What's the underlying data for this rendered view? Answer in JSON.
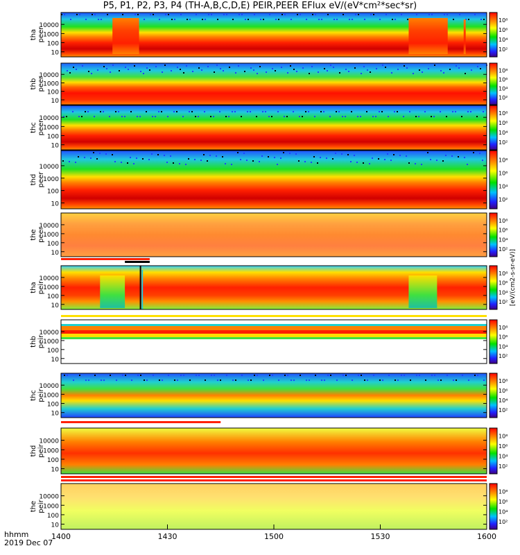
{
  "title": "P5, P1, P2, P3, P4 (TH-A,B,C,D,E) PEIR,PEER EFlux eV/(eV*cm²*sec*sr)",
  "footer": {
    "line1": "hhmm",
    "line2": "2019 Dec 07"
  },
  "colorbar_label": "[eV/(cm2-s-sr-eV)]",
  "colorbar_ticks": [
    "10²",
    "10⁴",
    "10⁶",
    "10⁸"
  ],
  "chart_data": {
    "type": "heatmap",
    "x_tick_labels": [
      "1400",
      "1430",
      "1500",
      "1530",
      "1600"
    ],
    "x_range": [
      "14:00",
      "16:00"
    ],
    "y_scale": "log",
    "y_tick_labels": [
      "10",
      "100",
      "1000",
      "10000"
    ],
    "colorscale": "rainbow (blue-green-yellow-red)",
    "panels": [
      {
        "probe": "tha",
        "species": "peer",
        "label": "tha\npeer",
        "colorbar": true
      },
      {
        "probe": "thb",
        "species": "peer",
        "label": "thb\npeer",
        "colorbar": true
      },
      {
        "probe": "thc",
        "species": "peer",
        "label": "thc\npeer",
        "colorbar": true
      },
      {
        "probe": "thd",
        "species": "peer",
        "label": "thd\npeer",
        "colorbar": true
      },
      {
        "probe": "the",
        "species": "peer",
        "label": "the\npeer",
        "colorbar": true
      },
      {
        "probe": "tha",
        "species": "peir",
        "label": "tha\npeir",
        "colorbar": true
      },
      {
        "probe": "thb",
        "species": "peir",
        "label": "thb\npeir",
        "colorbar": true
      },
      {
        "probe": "thc",
        "species": "peir",
        "label": "thc\npeir",
        "colorbar": true
      },
      {
        "probe": "thd",
        "species": "peir",
        "label": "thd\npeir",
        "colorbar": true
      },
      {
        "probe": "the",
        "species": "peir",
        "label": "the\npeir",
        "colorbar": true
      }
    ]
  },
  "colors": {
    "dark_red": "#b00000",
    "red": "#ff2000",
    "orange": "#ff8000",
    "yellow": "#ffe000",
    "green": "#20e020",
    "cyan": "#20c8e0",
    "blue": "#2040ff",
    "black": "#000000"
  }
}
